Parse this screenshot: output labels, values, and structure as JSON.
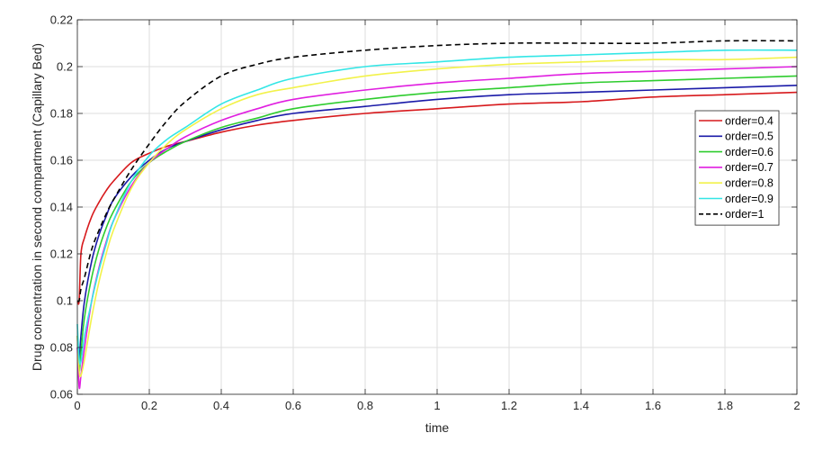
{
  "chart_data": {
    "type": "line",
    "title": "",
    "xlabel": "time",
    "ylabel": "Drug concentration in second compartment (Capillary Bed)",
    "xlim": [
      0,
      2
    ],
    "ylim": [
      0.06,
      0.22
    ],
    "x_ticks": [
      0,
      0.2,
      0.4,
      0.6,
      0.8,
      1,
      1.2,
      1.4,
      1.6,
      1.8,
      2
    ],
    "x_tick_labels": [
      "0",
      "0.2",
      "0.4",
      "0.6",
      "0.8",
      "1",
      "1.2",
      "1.4",
      "1.6",
      "1.8",
      "2"
    ],
    "y_ticks": [
      0.06,
      0.08,
      0.1,
      0.12,
      0.14,
      0.16,
      0.18,
      0.2,
      0.22
    ],
    "y_tick_labels": [
      "0.06",
      "0.08",
      "0.1",
      "0.12",
      "0.14",
      "0.16",
      "0.18",
      "0.2",
      "0.22"
    ],
    "grid": true,
    "legend_position": "right",
    "series": [
      {
        "name": "order=0.4",
        "color": "#d7191c",
        "dash": false,
        "x": [
          0,
          0.005,
          0.01,
          0.02,
          0.04,
          0.06,
          0.08,
          0.1,
          0.15,
          0.2,
          0.25,
          0.3,
          0.4,
          0.5,
          0.6,
          0.8,
          1,
          1.2,
          1.4,
          1.6,
          1.8,
          2
        ],
        "y": [
          0.1,
          0.1,
          0.12,
          0.127,
          0.136,
          0.142,
          0.147,
          0.151,
          0.159,
          0.163,
          0.166,
          0.168,
          0.172,
          0.175,
          0.177,
          0.18,
          0.182,
          0.184,
          0.185,
          0.187,
          0.188,
          0.189
        ]
      },
      {
        "name": "order=0.5",
        "color": "#1a1aa8",
        "dash": false,
        "x": [
          0,
          0.005,
          0.01,
          0.02,
          0.04,
          0.06,
          0.08,
          0.1,
          0.15,
          0.2,
          0.25,
          0.3,
          0.4,
          0.5,
          0.6,
          0.8,
          1,
          1.2,
          1.4,
          1.6,
          1.8,
          2
        ],
        "y": [
          0.08,
          0.075,
          0.085,
          0.1,
          0.117,
          0.128,
          0.136,
          0.143,
          0.153,
          0.16,
          0.165,
          0.168,
          0.173,
          0.177,
          0.18,
          0.183,
          0.186,
          0.188,
          0.189,
          0.19,
          0.191,
          0.192
        ]
      },
      {
        "name": "order=0.6",
        "color": "#2ecc2e",
        "dash": false,
        "x": [
          0,
          0.005,
          0.01,
          0.02,
          0.04,
          0.06,
          0.08,
          0.1,
          0.15,
          0.2,
          0.25,
          0.3,
          0.4,
          0.5,
          0.6,
          0.8,
          1,
          1.2,
          1.4,
          1.6,
          1.8,
          2
        ],
        "y": [
          0.085,
          0.07,
          0.078,
          0.093,
          0.11,
          0.122,
          0.131,
          0.138,
          0.151,
          0.159,
          0.164,
          0.168,
          0.174,
          0.178,
          0.182,
          0.186,
          0.189,
          0.191,
          0.193,
          0.194,
          0.195,
          0.196
        ]
      },
      {
        "name": "order=0.7",
        "color": "#e01ee0",
        "dash": false,
        "x": [
          0,
          0.005,
          0.01,
          0.02,
          0.04,
          0.06,
          0.08,
          0.1,
          0.15,
          0.2,
          0.25,
          0.3,
          0.4,
          0.5,
          0.6,
          0.8,
          1,
          1.2,
          1.4,
          1.6,
          1.8,
          2
        ],
        "y": [
          0.08,
          0.063,
          0.068,
          0.08,
          0.1,
          0.114,
          0.125,
          0.134,
          0.149,
          0.159,
          0.165,
          0.17,
          0.177,
          0.182,
          0.186,
          0.19,
          0.193,
          0.195,
          0.197,
          0.198,
          0.199,
          0.2
        ]
      },
      {
        "name": "order=0.8",
        "color": "#f2f24a",
        "dash": false,
        "x": [
          0,
          0.005,
          0.01,
          0.02,
          0.04,
          0.06,
          0.08,
          0.1,
          0.15,
          0.2,
          0.25,
          0.3,
          0.4,
          0.5,
          0.6,
          0.8,
          1,
          1.2,
          1.4,
          1.6,
          1.8,
          2
        ],
        "y": [
          0.085,
          0.07,
          0.068,
          0.075,
          0.093,
          0.108,
          0.12,
          0.13,
          0.148,
          0.159,
          0.167,
          0.173,
          0.182,
          0.188,
          0.191,
          0.196,
          0.199,
          0.201,
          0.202,
          0.203,
          0.203,
          0.204
        ]
      },
      {
        "name": "order=0.9",
        "color": "#33e6e6",
        "dash": false,
        "x": [
          0,
          0.005,
          0.01,
          0.02,
          0.04,
          0.06,
          0.08,
          0.1,
          0.15,
          0.2,
          0.25,
          0.3,
          0.4,
          0.5,
          0.6,
          0.8,
          1,
          1.2,
          1.4,
          1.6,
          1.8,
          2
        ],
        "y": [
          0.09,
          0.075,
          0.074,
          0.085,
          0.1,
          0.113,
          0.124,
          0.134,
          0.151,
          0.162,
          0.169,
          0.174,
          0.184,
          0.19,
          0.195,
          0.2,
          0.202,
          0.204,
          0.205,
          0.206,
          0.207,
          0.207
        ]
      },
      {
        "name": "order=1",
        "color": "#000000",
        "dash": true,
        "x": [
          0,
          0.005,
          0.01,
          0.02,
          0.04,
          0.06,
          0.08,
          0.1,
          0.15,
          0.2,
          0.25,
          0.3,
          0.4,
          0.5,
          0.6,
          0.8,
          1,
          1.2,
          1.4,
          1.6,
          1.8,
          2
        ],
        "y": [
          0.1,
          0.1,
          0.105,
          0.11,
          0.122,
          0.13,
          0.137,
          0.143,
          0.156,
          0.167,
          0.177,
          0.185,
          0.196,
          0.201,
          0.204,
          0.207,
          0.209,
          0.21,
          0.21,
          0.21,
          0.211,
          0.211
        ]
      }
    ]
  }
}
